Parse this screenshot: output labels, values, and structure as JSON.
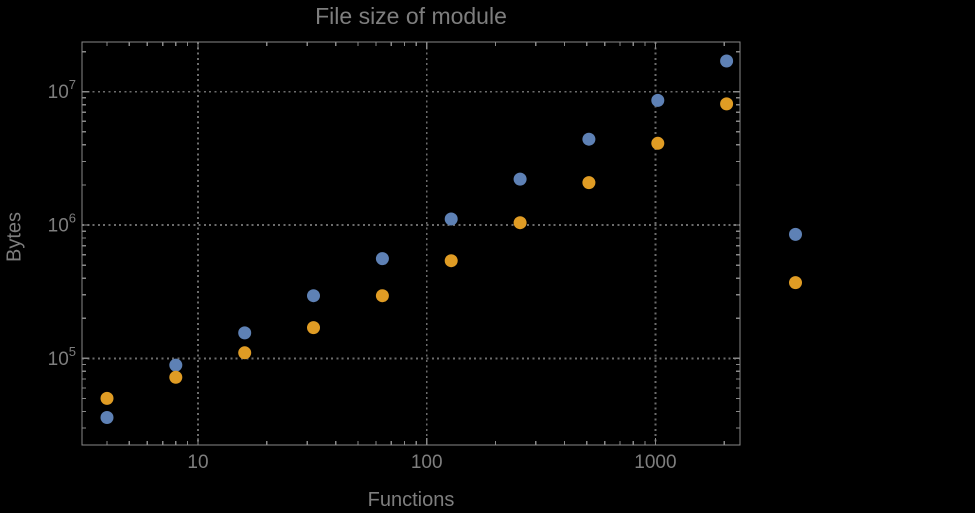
{
  "chart_data": {
    "type": "scatter",
    "title": "File size of module",
    "xlabel": "Functions",
    "ylabel": "Bytes",
    "x_scale": "log",
    "y_scale": "log",
    "grid": "dotted",
    "legend": "none",
    "x": [
      4,
      8,
      16,
      32,
      64,
      128,
      256,
      512,
      1024,
      2048,
      4096
    ],
    "series": [
      {
        "name": "blue-series",
        "color": "#5e81b5",
        "values": [
          36000,
          89000,
          155000,
          295000,
          560000,
          1110000,
          2210000,
          4400000,
          8600000,
          17000000,
          850000
        ]
      },
      {
        "name": "orange-series",
        "color": "#e09c24",
        "values": [
          50000,
          72000,
          110000,
          170000,
          295000,
          540000,
          1040000,
          2080000,
          4100000,
          8100000,
          370000
        ]
      }
    ],
    "x_ticks": [
      {
        "value": 10,
        "label": "10"
      },
      {
        "value": 100,
        "label": "100"
      },
      {
        "value": 1000,
        "label": "1000"
      }
    ],
    "y_ticks": [
      {
        "value": 100000,
        "base": "10",
        "exponent": "5"
      },
      {
        "value": 1000000,
        "base": "10",
        "exponent": "6"
      },
      {
        "value": 10000000,
        "base": "10",
        "exponent": "7"
      }
    ],
    "x_log_range": [
      0.4928,
      3.3699
    ],
    "y_log_range": [
      4.3497,
      7.3728
    ],
    "colors": {
      "background": "#000000",
      "frame": "#898989",
      "grid": "#6c6c6c",
      "text": "#7e7e7e",
      "point_blue": "#5e81b5",
      "point_orange": "#e09c24"
    }
  }
}
